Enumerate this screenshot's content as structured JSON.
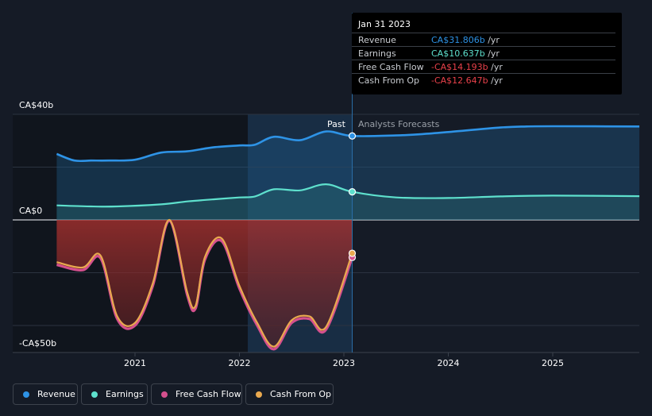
{
  "chart_data": {
    "type": "area",
    "y_axis": {
      "ticks": [
        {
          "value": 40,
          "label": "CA$40b"
        },
        {
          "value": 0,
          "label": "CA$0"
        },
        {
          "value": -50,
          "label": "-CA$50b"
        }
      ],
      "range": [
        -50,
        40
      ],
      "unit": "CA$b"
    },
    "x_axis": {
      "ticks": [
        {
          "value": 2021,
          "label": "2021"
        },
        {
          "value": 2022,
          "label": "2022"
        },
        {
          "value": 2023,
          "label": "2023"
        },
        {
          "value": 2024,
          "label": "2024"
        },
        {
          "value": 2025,
          "label": "2025"
        }
      ],
      "range": [
        2020.0,
        2025.83
      ]
    },
    "regions": {
      "past_label": "Past",
      "forecast_label": "Analysts Forecasts",
      "divider_x": 2023.08,
      "shade_start_x": 2022.08
    },
    "series": [
      {
        "name": "Revenue",
        "color": "#2e93e6",
        "values": [
          [
            2020.25,
            25.0
          ],
          [
            2020.42,
            22.5
          ],
          [
            2020.58,
            22.5
          ],
          [
            2020.75,
            22.5
          ],
          [
            2021.0,
            22.8
          ],
          [
            2021.25,
            25.5
          ],
          [
            2021.5,
            26.0
          ],
          [
            2021.75,
            27.5
          ],
          [
            2022.0,
            28.2
          ],
          [
            2022.15,
            28.5
          ],
          [
            2022.33,
            31.5
          ],
          [
            2022.58,
            30.2
          ],
          [
            2022.83,
            33.5
          ],
          [
            2023.08,
            31.806
          ],
          [
            2023.5,
            32.0
          ],
          [
            2023.75,
            32.5
          ],
          [
            2024.0,
            33.3
          ],
          [
            2024.5,
            35.0
          ],
          [
            2024.75,
            35.4
          ],
          [
            2025.0,
            35.5
          ],
          [
            2025.83,
            35.4
          ]
        ]
      },
      {
        "name": "Earnings",
        "color": "#5ee0cd",
        "values": [
          [
            2020.25,
            5.5
          ],
          [
            2020.58,
            5.1
          ],
          [
            2020.83,
            5.1
          ],
          [
            2021.25,
            5.9
          ],
          [
            2021.5,
            7.0
          ],
          [
            2021.75,
            7.8
          ],
          [
            2022.0,
            8.5
          ],
          [
            2022.15,
            8.9
          ],
          [
            2022.33,
            11.6
          ],
          [
            2022.58,
            11.2
          ],
          [
            2022.83,
            13.5
          ],
          [
            2023.08,
            10.637
          ],
          [
            2023.5,
            8.5
          ],
          [
            2024.0,
            8.3
          ],
          [
            2024.5,
            8.9
          ],
          [
            2025.0,
            9.2
          ],
          [
            2025.83,
            9.0
          ]
        ]
      },
      {
        "name": "Free Cash Flow",
        "color": "#d4508d",
        "values": [
          [
            2020.25,
            -17.0
          ],
          [
            2020.5,
            -19.0
          ],
          [
            2020.67,
            -14.5
          ],
          [
            2020.83,
            -37.5
          ],
          [
            2021.0,
            -40.0
          ],
          [
            2021.17,
            -25.0
          ],
          [
            2021.33,
            -0.3
          ],
          [
            2021.5,
            -28.5
          ],
          [
            2021.58,
            -33.5
          ],
          [
            2021.67,
            -15.0
          ],
          [
            2021.83,
            -8.0
          ],
          [
            2022.0,
            -26.0
          ],
          [
            2022.17,
            -40.0
          ],
          [
            2022.33,
            -49.0
          ],
          [
            2022.5,
            -39.0
          ],
          [
            2022.67,
            -37.5
          ],
          [
            2022.83,
            -41.5
          ],
          [
            2023.08,
            -14.193
          ]
        ]
      },
      {
        "name": "Cash From Op",
        "color": "#e9a94f",
        "values": [
          [
            2020.25,
            -16.0
          ],
          [
            2020.5,
            -18.0
          ],
          [
            2020.67,
            -13.5
          ],
          [
            2020.83,
            -36.5
          ],
          [
            2021.0,
            -39.0
          ],
          [
            2021.17,
            -24.0
          ],
          [
            2021.33,
            0.0
          ],
          [
            2021.5,
            -27.5
          ],
          [
            2021.58,
            -32.5
          ],
          [
            2021.67,
            -14.0
          ],
          [
            2021.83,
            -7.0
          ],
          [
            2022.0,
            -25.0
          ],
          [
            2022.17,
            -39.0
          ],
          [
            2022.33,
            -48.0
          ],
          [
            2022.5,
            -38.0
          ],
          [
            2022.67,
            -36.5
          ],
          [
            2022.83,
            -40.5
          ],
          [
            2023.08,
            -12.647
          ]
        ]
      }
    ],
    "legend_placement": "bottom",
    "grid": true
  },
  "tooltip": {
    "title": "Jan 31 2023",
    "unit": "/yr",
    "rows": [
      {
        "name": "Revenue",
        "value": "CA$31.806b",
        "color": "#2e93e6"
      },
      {
        "name": "Earnings",
        "value": "CA$10.637b",
        "color": "#5ee0cd"
      },
      {
        "name": "Free Cash Flow",
        "value": "-CA$14.193b",
        "color": "#e8414a"
      },
      {
        "name": "Cash From Op",
        "value": "-CA$12.647b",
        "color": "#e8414a"
      }
    ]
  },
  "legend": {
    "items": [
      {
        "label": "Revenue",
        "color": "#2e93e6"
      },
      {
        "label": "Earnings",
        "color": "#5ee0cd"
      },
      {
        "label": "Free Cash Flow",
        "color": "#d4508d"
      },
      {
        "label": "Cash From Op",
        "color": "#e9a94f"
      }
    ]
  }
}
